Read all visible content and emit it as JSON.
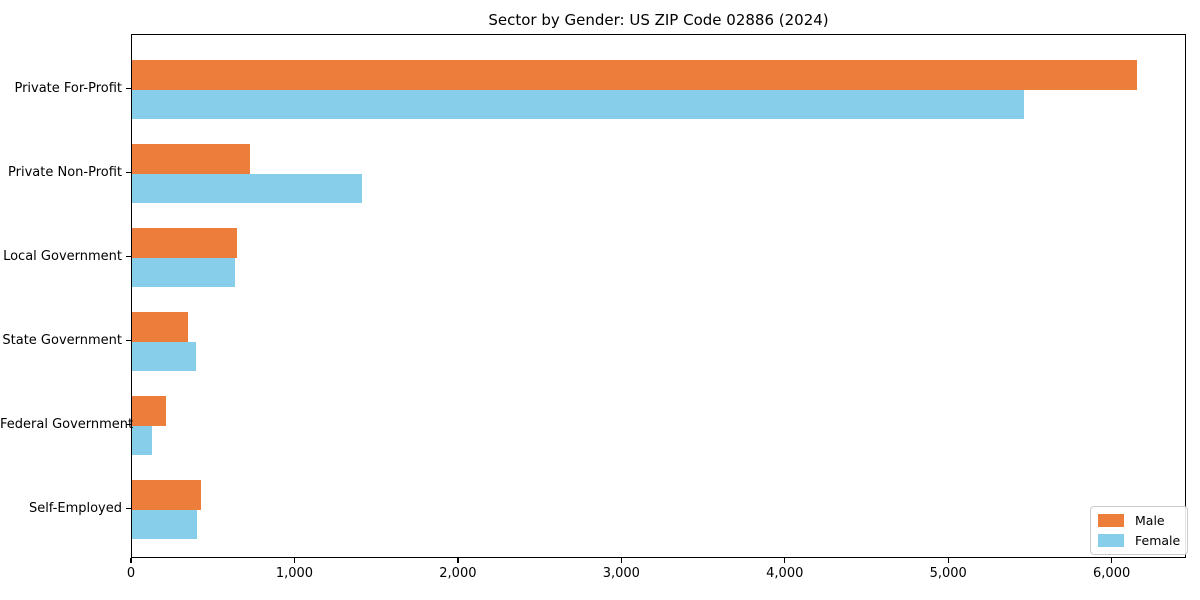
{
  "figure": {
    "background": "#ffffff",
    "spine_color": "#000000",
    "legend_border_color": "#cccccc"
  },
  "chart_data": {
    "type": "bar",
    "orientation": "horizontal",
    "title": "Sector by Gender: US ZIP Code 02886 (2024)",
    "xlabel": "",
    "ylabel": "",
    "grid": false,
    "legend_position": "lower right",
    "categories": [
      "Private For-Profit",
      "Private Non-Profit",
      "Local Government",
      "State Government",
      "Federal Government",
      "Self-Employed"
    ],
    "series": [
      {
        "name": "Male",
        "color": "#ED7D3B",
        "values": [
          6150,
          720,
          645,
          345,
          210,
          420
        ]
      },
      {
        "name": "Female",
        "color": "#87CEEB",
        "values": [
          5460,
          1410,
          630,
          390,
          125,
          395
        ]
      }
    ],
    "xlim": [
      0,
      6455
    ],
    "xticks": [
      0,
      1000,
      2000,
      3000,
      4000,
      5000,
      6000
    ],
    "xticklabels": [
      "0",
      "1,000",
      "2,000",
      "3,000",
      "4,000",
      "5,000",
      "6,000"
    ]
  }
}
